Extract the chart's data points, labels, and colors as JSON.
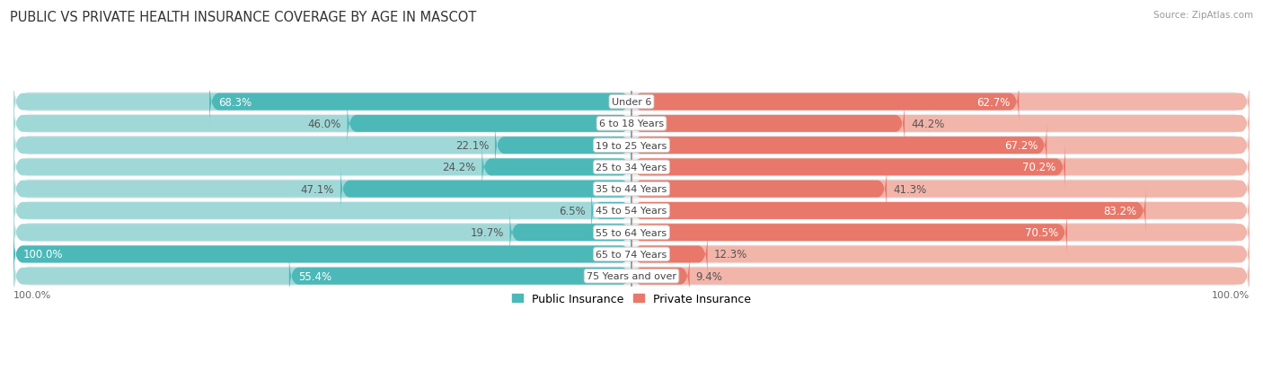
{
  "title": "PUBLIC VS PRIVATE HEALTH INSURANCE COVERAGE BY AGE IN MASCOT",
  "source": "Source: ZipAtlas.com",
  "categories": [
    "Under 6",
    "6 to 18 Years",
    "19 to 25 Years",
    "25 to 34 Years",
    "35 to 44 Years",
    "45 to 54 Years",
    "55 to 64 Years",
    "65 to 74 Years",
    "75 Years and over"
  ],
  "public_values": [
    68.3,
    46.0,
    22.1,
    24.2,
    47.1,
    6.5,
    19.7,
    100.0,
    55.4
  ],
  "private_values": [
    62.7,
    44.2,
    67.2,
    70.2,
    41.3,
    83.2,
    70.5,
    12.3,
    9.4
  ],
  "public_color": "#4cb8b8",
  "private_color": "#e8786a",
  "public_color_light": "#a0d8d8",
  "private_color_light": "#f2b5aa",
  "row_bg_colors": [
    "#e2e6e9",
    "#eef0f2"
  ],
  "max_value": 100.0,
  "title_fontsize": 10.5,
  "label_fontsize": 8.5,
  "legend_fontsize": 9,
  "axis_label_fontsize": 8
}
